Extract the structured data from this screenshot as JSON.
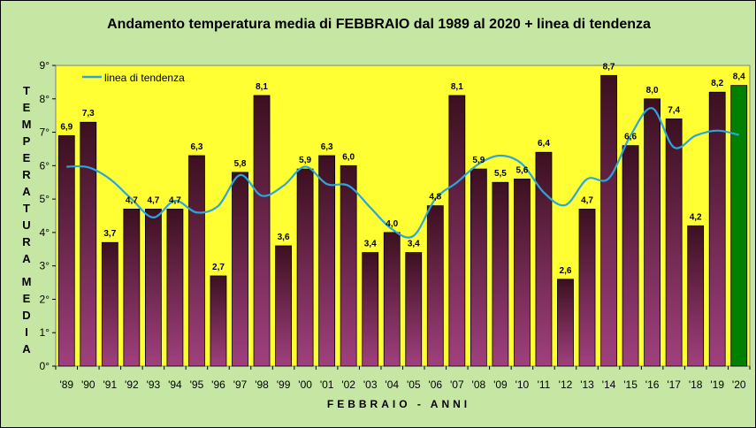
{
  "chart_data": {
    "type": "bar",
    "title": "Andamento temperatura media di FEBBRAIO dal 1989 al 2020 + linea di tendenza",
    "xlabel": "FEBBRAIO - ANNI",
    "ylabel_top": "TEMPERATURA",
    "ylabel_bottom": "MEDIA",
    "ylim": [
      0,
      9
    ],
    "y_ticks": [
      "0°",
      "1°",
      "2°",
      "3°",
      "4°",
      "5°",
      "6°",
      "7°",
      "8°",
      "9°"
    ],
    "categories": [
      "'89",
      "'90",
      "'91",
      "'92",
      "'93",
      "'94",
      "'95",
      "'96",
      "'97",
      "'98",
      "'99",
      "'00",
      "'01",
      "'02",
      "'03",
      "'04",
      "'05",
      "'06",
      "'07",
      "'08",
      "'09",
      "'10",
      "'11",
      "'12",
      "'13",
      "'14",
      "'15",
      "'16",
      "'17",
      "'18",
      "'19",
      "'20"
    ],
    "values": [
      6.9,
      7.3,
      3.7,
      4.7,
      4.7,
      4.7,
      6.3,
      2.7,
      5.8,
      8.1,
      3.6,
      5.9,
      6.3,
      6.0,
      3.4,
      4.0,
      3.4,
      4.8,
      8.1,
      5.9,
      5.5,
      5.6,
      6.4,
      2.6,
      4.7,
      8.7,
      6.6,
      8.0,
      7.4,
      4.2,
      8.2,
      8.4
    ],
    "value_labels": [
      "6,9",
      "7,3",
      "3,7",
      "4,7",
      "4,7",
      "4,7",
      "6,3",
      "2,7",
      "5,8",
      "8,1",
      "3,6",
      "5,9",
      "6,3",
      "6,0",
      "3,4",
      "4,0",
      "3,4",
      "4,8",
      "8,1",
      "5,9",
      "5,5",
      "5,6",
      "6,4",
      "2,6",
      "4,7",
      "8,7",
      "6,6",
      "8,0",
      "7,4",
      "4,2",
      "8,2",
      "8,4"
    ],
    "highlight_index": 31,
    "trend_series": {
      "name": "linea di tendenza",
      "values": [
        5.97,
        5.95,
        5.6,
        5.0,
        4.45,
        4.95,
        4.6,
        4.8,
        5.72,
        5.1,
        5.4,
        5.97,
        5.45,
        5.4,
        4.75,
        4.1,
        3.9,
        5.0,
        5.5,
        6.05,
        6.3,
        6.05,
        5.2,
        4.82,
        5.6,
        5.62,
        6.9,
        7.72,
        6.55,
        6.9,
        7.05,
        6.92
      ]
    },
    "grid": false,
    "legend_position": "top-left",
    "colors": {
      "plot_background": "#ffff33",
      "chart_background": "#c6e7a4",
      "bar_top": "#3c1020",
      "bar_bottom": "#a0407e",
      "bar_highlight": "#008000",
      "trend_line": "#2aa6dc"
    }
  }
}
